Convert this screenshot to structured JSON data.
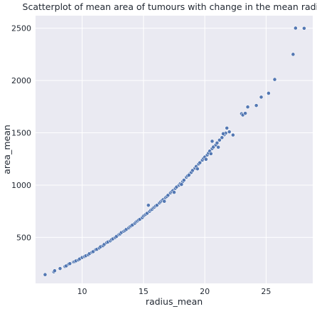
{
  "chart_data": {
    "type": "scatter",
    "title": "Scatterplot of mean area of tumours with change in the mean radius",
    "xlabel": "radius_mean",
    "ylabel": "area_mean",
    "xlim": [
      6.2,
      28.8
    ],
    "ylim": [
      60,
      2620
    ],
    "x_ticks": [
      10,
      15,
      20,
      25
    ],
    "y_ticks": [
      500,
      1000,
      1500,
      2000,
      2500
    ],
    "grid": true,
    "legend": "none",
    "series": [
      {
        "color": "#4c72b0",
        "points": [
          [
            6.98,
            143.5
          ],
          [
            7.69,
            170.4
          ],
          [
            7.76,
            181.0
          ],
          [
            8.2,
            201.9
          ],
          [
            8.6,
            221.8
          ],
          [
            8.7,
            227.2
          ],
          [
            8.9,
            244.0
          ],
          [
            9.0,
            248.7
          ],
          [
            9.3,
            265.0
          ],
          [
            9.4,
            268.8
          ],
          [
            9.5,
            275.3
          ],
          [
            9.7,
            284.9
          ],
          [
            9.8,
            294.0
          ],
          [
            10.0,
            307.3
          ],
          [
            10.2,
            316.9
          ],
          [
            10.3,
            324.2
          ],
          [
            10.5,
            334.2
          ],
          [
            10.6,
            345.1
          ],
          [
            10.8,
            357.6
          ],
          [
            10.9,
            363.7
          ],
          [
            11.1,
            382.2
          ],
          [
            11.2,
            386.0
          ],
          [
            11.4,
            398.4
          ],
          [
            11.5,
            410.0
          ],
          [
            11.7,
            420.3
          ],
          [
            11.8,
            432.8
          ],
          [
            12.0,
            449.3
          ],
          [
            12.1,
            455.8
          ],
          [
            12.3,
            466.5
          ],
          [
            12.4,
            478.8
          ],
          [
            12.5,
            485.6
          ],
          [
            12.7,
            499.0
          ],
          [
            12.8,
            509.5
          ],
          [
            13.0,
            526.4
          ],
          [
            13.1,
            533.1
          ],
          [
            13.2,
            546.4
          ],
          [
            13.4,
            558.1
          ],
          [
            13.5,
            566.3
          ],
          [
            13.6,
            576.6
          ],
          [
            13.8,
            591.0
          ],
          [
            13.9,
            602.4
          ],
          [
            14.0,
            609.9
          ],
          [
            14.1,
            618.3
          ],
          [
            14.3,
            634.7
          ],
          [
            14.4,
            648.2
          ],
          [
            14.5,
            656.1
          ],
          [
            14.6,
            664.9
          ],
          [
            14.7,
            672.4
          ],
          [
            14.9,
            688.9
          ],
          [
            15.0,
            704.4
          ],
          [
            15.1,
            712.8
          ],
          [
            15.2,
            721.6
          ],
          [
            15.3,
            730.3
          ],
          [
            15.5,
            748.9
          ],
          [
            15.6,
            760.2
          ],
          [
            15.7,
            768.5
          ],
          [
            15.8,
            781.0
          ],
          [
            15.9,
            790.0
          ],
          [
            16.0,
            800.2
          ],
          [
            16.1,
            807.2
          ],
          [
            16.3,
            829.0
          ],
          [
            16.4,
            840.7
          ],
          [
            16.5,
            851.6
          ],
          [
            16.6,
            860.2
          ],
          [
            16.8,
            880.1
          ],
          [
            16.9,
            890.6
          ],
          [
            17.0,
            902.3
          ],
          [
            17.2,
            925.4
          ],
          [
            17.3,
            937.0
          ],
          [
            17.4,
            946.1
          ],
          [
            17.6,
            967.8
          ],
          [
            17.7,
            981.6
          ],
          [
            17.9,
            998.9
          ],
          [
            18.0,
            1013.0
          ],
          [
            18.2,
            1033.0
          ],
          [
            18.3,
            1047.0
          ],
          [
            18.5,
            1075.0
          ],
          [
            18.6,
            1088.0
          ],
          [
            18.8,
            1110.0
          ],
          [
            18.9,
            1122.0
          ],
          [
            19.0,
            1140.0
          ],
          [
            19.2,
            1162.0
          ],
          [
            19.3,
            1178.0
          ],
          [
            19.5,
            1202.0
          ],
          [
            19.6,
            1214.0
          ],
          [
            19.8,
            1239.0
          ],
          [
            19.9,
            1256.0
          ],
          [
            20.0,
            1268.0
          ],
          [
            20.2,
            1288.0
          ],
          [
            20.3,
            1306.0
          ],
          [
            20.4,
            1325.0
          ],
          [
            20.6,
            1349.0
          ],
          [
            20.7,
            1364.0
          ],
          [
            20.9,
            1384.0
          ],
          [
            21.0,
            1403.0
          ],
          [
            21.2,
            1430.0
          ],
          [
            21.4,
            1454.0
          ],
          [
            21.6,
            1482.0
          ],
          [
            21.7,
            1497.0
          ],
          [
            22.0,
            1509.0
          ],
          [
            15.4,
            807.0
          ],
          [
            16.7,
            845.0
          ],
          [
            17.5,
            931.0
          ],
          [
            18.1,
            1006.0
          ],
          [
            18.7,
            1095.0
          ],
          [
            19.4,
            1155.0
          ],
          [
            20.1,
            1246.0
          ],
          [
            20.5,
            1300.0
          ],
          [
            21.1,
            1362.0
          ],
          [
            21.5,
            1491.0
          ],
          [
            21.8,
            1545.0
          ],
          [
            22.3,
            1479.0
          ],
          [
            20.6,
            1419.0
          ],
          [
            23.0,
            1682.0
          ],
          [
            23.1,
            1670.0
          ],
          [
            23.3,
            1686.0
          ],
          [
            23.5,
            1747.0
          ],
          [
            24.2,
            1761.0
          ],
          [
            24.6,
            1841.0
          ],
          [
            25.2,
            1878.0
          ],
          [
            25.7,
            2010.0
          ],
          [
            27.2,
            2250.0
          ],
          [
            27.4,
            2501.0
          ],
          [
            28.1,
            2499.0
          ]
        ]
      }
    ]
  }
}
